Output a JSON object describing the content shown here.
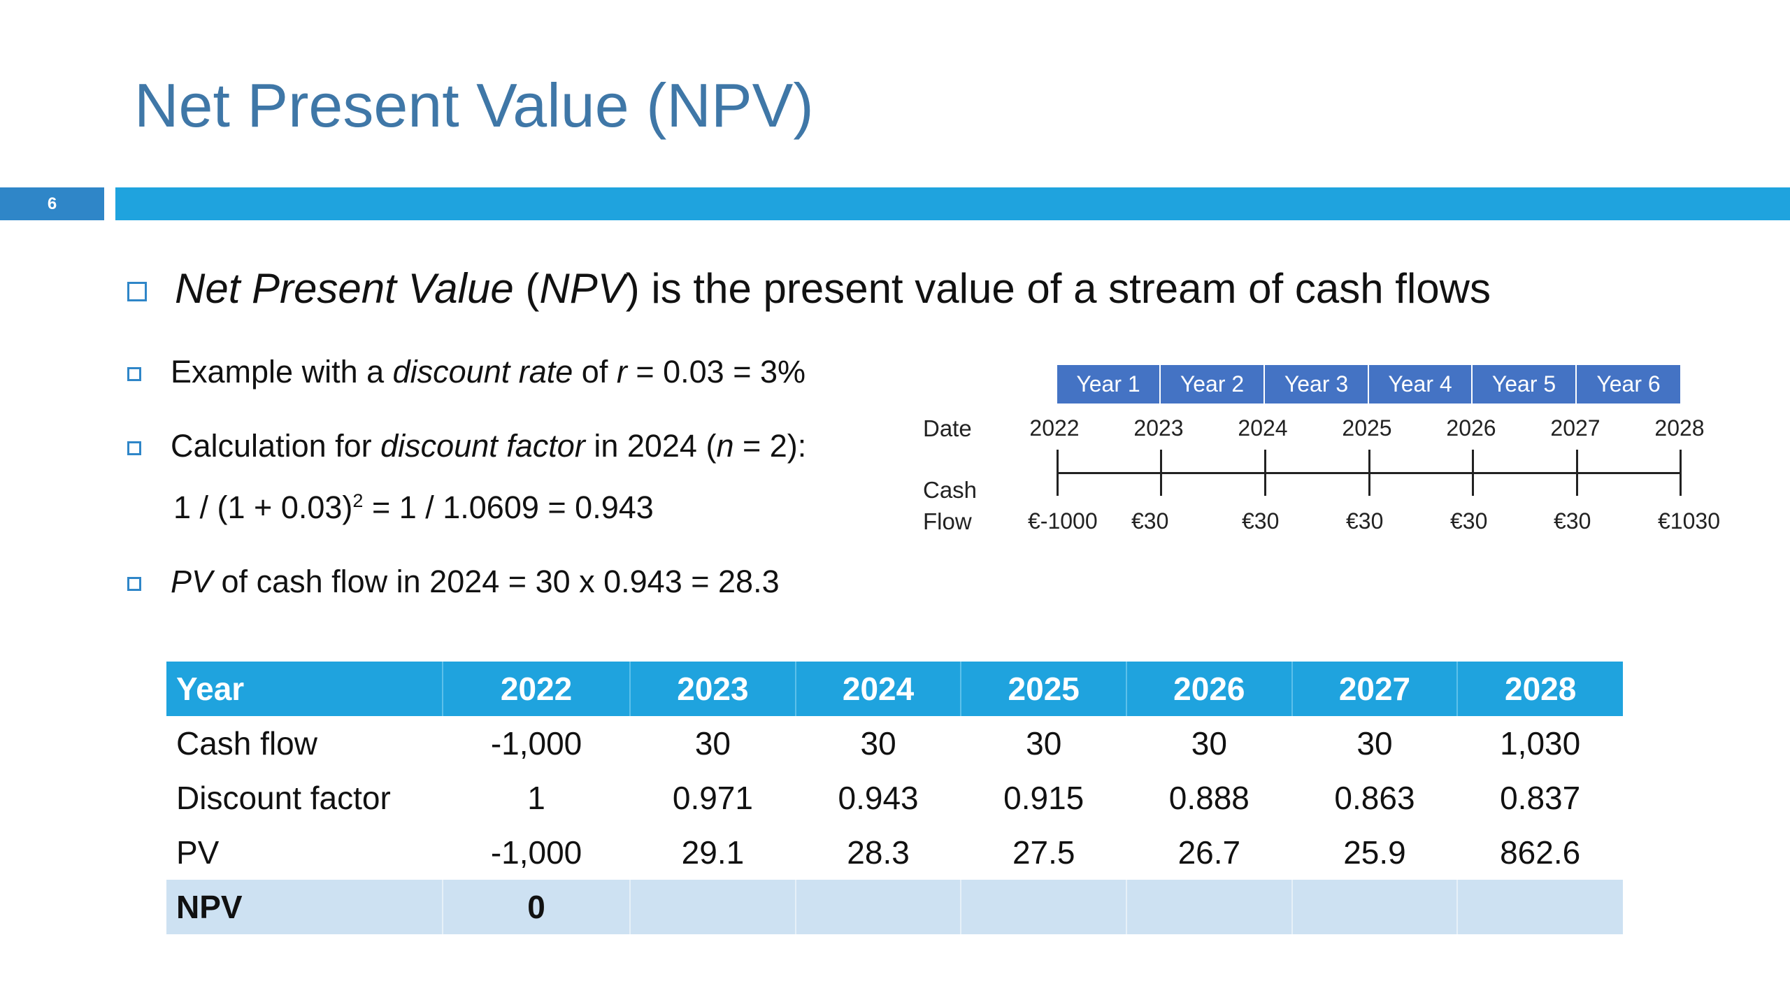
{
  "slide": {
    "title": "Net Present Value (NPV)",
    "number": "6"
  },
  "bullets": {
    "b1": {
      "term": "Net Present Value",
      "paren_open": " (",
      "abbr": "NPV",
      "rest": ") is the present value of a stream of cash flows"
    },
    "b2": {
      "t1": "Example with a ",
      "term": "discount rate",
      "t2": " of ",
      "var": "r",
      "t3": " = 0.03 = 3%"
    },
    "b3": {
      "t1": "Calculation for ",
      "term": "discount factor",
      "t2": " in 2024 (",
      "var": "n",
      "t3": " = 2):"
    },
    "b3_formula": {
      "t1": "1 / (1 + 0.03)",
      "exp": "2",
      "t2": " = 1 / 1.0609 = 0.943"
    },
    "b4": {
      "term": "PV",
      "t1": " of cash flow in 2024 = 30 x 0.943 = 28.3"
    }
  },
  "timeline": {
    "date_label": "Date",
    "cash_label_1": "Cash",
    "cash_label_2": "Flow",
    "years": [
      "Year 1",
      "Year 2",
      "Year 3",
      "Year 4",
      "Year 5",
      "Year 6"
    ],
    "dates": [
      "2022",
      "2023",
      "2024",
      "2025",
      "2026",
      "2027",
      "2028"
    ],
    "cash_flows": [
      "€-1000",
      "€30",
      "€30",
      "€30",
      "€30",
      "€30",
      "€1030"
    ]
  },
  "table": {
    "headers": [
      "Year",
      "2022",
      "2023",
      "2024",
      "2025",
      "2026",
      "2027",
      "2028"
    ],
    "rows": [
      [
        "Cash flow",
        "-1,000",
        "30",
        "30",
        "30",
        "30",
        "30",
        "1,030"
      ],
      [
        "Discount factor",
        "1",
        "0.971",
        "0.943",
        "0.915",
        "0.888",
        "0.863",
        "0.837"
      ],
      [
        "PV",
        "-1,000",
        "29.1",
        "28.3",
        "27.5",
        "26.7",
        "25.9",
        "862.6"
      ]
    ],
    "npv_row": [
      "NPV",
      "0",
      "",
      "",
      "",
      "",
      "",
      ""
    ]
  },
  "colors": {
    "title": "#3f77a7",
    "accent_bar": "#1fa3de",
    "slide_number_bar": "#2f86c8",
    "timeline_year_box": "#4473c4",
    "table_header": "#1fa3de",
    "npv_row": "#cde1f2"
  }
}
